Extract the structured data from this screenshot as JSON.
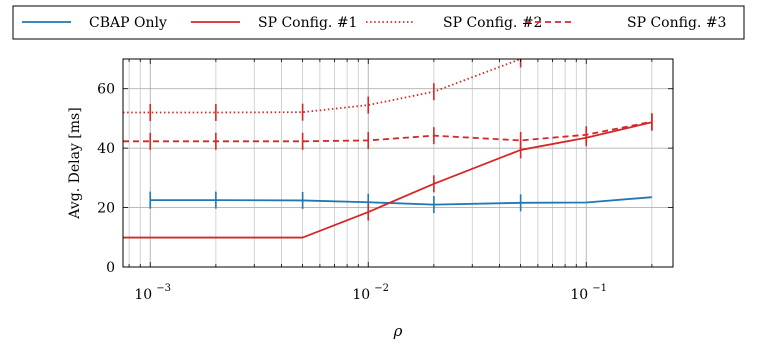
{
  "chart_data": {
    "type": "line",
    "x_scale": "log",
    "xlabel": "ρ",
    "ylabel": "Avg. Delay [ms]",
    "xlim": [
      0.00075,
      0.25
    ],
    "ylim": [
      0,
      70
    ],
    "x_ticks": [
      0.001,
      0.01,
      0.1
    ],
    "x_tick_labels": [
      {
        "base": "10",
        "exp": "−3"
      },
      {
        "base": "10",
        "exp": "−2"
      },
      {
        "base": "10",
        "exp": "−1"
      }
    ],
    "y_ticks": [
      0,
      20,
      40,
      60
    ],
    "y_tick_labels": [
      "0",
      "20",
      "40",
      "60"
    ],
    "grid": true,
    "legend_position": "top, outside plot",
    "series": [
      {
        "name": "CBAP Only",
        "color": "#1f77b4",
        "dash": "solid",
        "x": [
          0.001,
          0.002,
          0.005,
          0.01,
          0.02,
          0.05,
          0.1,
          0.2
        ],
        "values": [
          22.5,
          22.5,
          22.4,
          21.8,
          21.0,
          21.6,
          21.7,
          23.5
        ],
        "errorbars": [
          true,
          true,
          true,
          true,
          true,
          true,
          false,
          false
        ]
      },
      {
        "name": "SP Config. #1",
        "color": "#d62728",
        "dash": "solid",
        "x": [
          0.00075,
          0.001,
          0.002,
          0.005,
          0.01,
          0.02,
          0.05,
          0.1,
          0.2
        ],
        "values": [
          9.9,
          9.9,
          9.9,
          9.9,
          18.5,
          28.0,
          39.4,
          43.5,
          48.7
        ],
        "errorbars": [
          false,
          false,
          false,
          false,
          true,
          true,
          true,
          true,
          true
        ]
      },
      {
        "name": "SP Config. #2",
        "color": "#d62728",
        "dash": "dotted",
        "x": [
          0.00075,
          0.001,
          0.002,
          0.005,
          0.01,
          0.02,
          0.05
        ],
        "values": [
          52.0,
          52.0,
          52.0,
          52.1,
          54.5,
          59.0,
          70.0
        ],
        "errorbars": [
          false,
          true,
          true,
          true,
          true,
          true,
          true
        ]
      },
      {
        "name": "SP Config. #3",
        "color": "#d62728",
        "dash": "dashed",
        "x": [
          0.00075,
          0.001,
          0.002,
          0.005,
          0.01,
          0.02,
          0.05,
          0.1,
          0.2
        ],
        "values": [
          42.3,
          42.3,
          42.3,
          42.3,
          42.6,
          44.2,
          42.6,
          44.5,
          48.9
        ],
        "errorbars": [
          false,
          true,
          true,
          true,
          true,
          true,
          true,
          true,
          true
        ]
      }
    ]
  }
}
